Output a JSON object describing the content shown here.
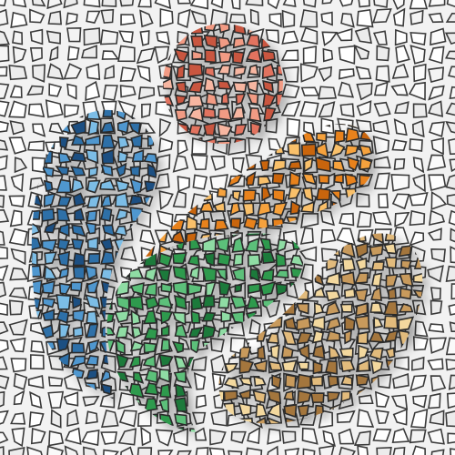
{
  "artwork": {
    "style": "stained-glass mosaic",
    "background_color": "#f2f2f2",
    "grout_color": "#2a2a2a",
    "shapes": [
      {
        "name": "coral-circle",
        "colors": [
          "#e2735e",
          "#f29b84",
          "#c9563f",
          "#f7b6a1"
        ]
      },
      {
        "name": "blue-drop",
        "colors": [
          "#2e6fa8",
          "#4f97cf",
          "#1e4f82",
          "#7cbde6"
        ]
      },
      {
        "name": "orange-leaf",
        "colors": [
          "#e8821e",
          "#f6a23c",
          "#c9650f",
          "#f9c06a"
        ]
      },
      {
        "name": "green-leaf",
        "colors": [
          "#2f9a4e",
          "#5cc07a",
          "#1f7a3a",
          "#8fdca4"
        ]
      },
      {
        "name": "tan-bean",
        "colors": [
          "#c89a5c",
          "#e2bb7c",
          "#a4763e",
          "#f3d89e"
        ]
      }
    ]
  }
}
